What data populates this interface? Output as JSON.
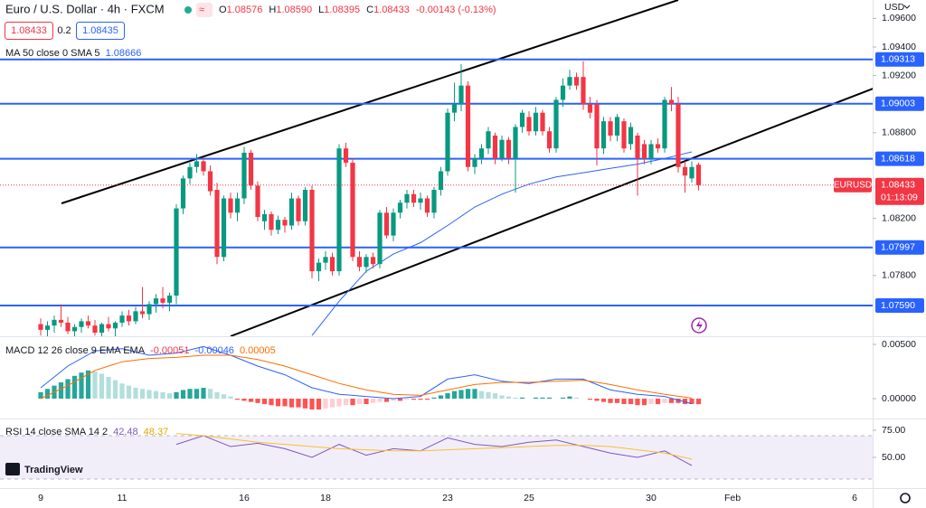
{
  "header": {
    "symbol": "Euro / U.S. Dollar · 4h · FXCM",
    "ohlc": [
      {
        "label": "O",
        "value": "1.08576"
      },
      {
        "label": "H",
        "value": "1.08590"
      },
      {
        "label": "L",
        "value": "1.08395"
      },
      {
        "label": "C",
        "value": "1.08433"
      }
    ],
    "change": "-0.00143 (-0.13%)",
    "bid": "1.08433",
    "spread": "0.2",
    "ask": "1.08435",
    "currency": "USD",
    "watermark": "TradingView"
  },
  "chart_data": [
    {
      "type": "candlestick",
      "up_color": "#089981",
      "down_color": "#f23645",
      "ylim": [
        1.07375,
        1.09729
      ],
      "yticks": [
        {
          "value": 1.096,
          "label": "1.09600"
        },
        {
          "value": 1.094,
          "label": "1.09400"
        },
        {
          "value": 1.092,
          "label": "1.09200"
        },
        {
          "value": 1.088,
          "label": "1.08800"
        },
        {
          "value": 1.082,
          "label": "1.08200"
        },
        {
          "value": 1.078,
          "label": "1.07800"
        }
      ],
      "x_labels": [
        "9",
        "11",
        "16",
        "18",
        "23",
        "25",
        "30",
        "Feb",
        "6"
      ],
      "candles": [
        [
          1.0746,
          1.075,
          1.0738,
          1.0742
        ],
        [
          1.0742,
          1.0748,
          1.0736,
          1.0745
        ],
        [
          1.0745,
          1.0752,
          1.074,
          1.0749
        ],
        [
          1.0749,
          1.076,
          1.0744,
          1.0747
        ],
        [
          1.0747,
          1.0751,
          1.0739,
          1.0741
        ],
        [
          1.0741,
          1.0746,
          1.0735,
          1.0744
        ],
        [
          1.0744,
          1.075,
          1.074,
          1.0748
        ],
        [
          1.0748,
          1.0752,
          1.0743,
          1.0745
        ],
        [
          1.0745,
          1.0749,
          1.0738,
          1.074
        ],
        [
          1.074,
          1.0747,
          1.0736,
          1.0746
        ],
        [
          1.0746,
          1.0751,
          1.0741,
          1.0743
        ],
        [
          1.0743,
          1.0748,
          1.0737,
          1.0747
        ],
        [
          1.0747,
          1.0755,
          1.0744,
          1.0752
        ],
        [
          1.0752,
          1.0756,
          1.0745,
          1.0748
        ],
        [
          1.0748,
          1.0758,
          1.0746,
          1.0755
        ],
        [
          1.0755,
          1.0772,
          1.075,
          1.0753
        ],
        [
          1.0753,
          1.0762,
          1.0749,
          1.076
        ],
        [
          1.076,
          1.0767,
          1.0754,
          1.0764
        ],
        [
          1.0764,
          1.0772,
          1.0757,
          1.0761
        ],
        [
          1.0761,
          1.0768,
          1.0755,
          1.0766
        ],
        [
          1.0766,
          1.083,
          1.076,
          1.0827
        ],
        [
          1.0827,
          1.085,
          1.0823,
          1.0848
        ],
        [
          1.0848,
          1.0859,
          1.0844,
          1.0856
        ],
        [
          1.0856,
          1.0865,
          1.0852,
          1.086
        ],
        [
          1.086,
          1.0863,
          1.085,
          1.0853
        ],
        [
          1.0853,
          1.0857,
          1.0836,
          1.0839
        ],
        [
          1.084,
          1.0845,
          1.0788,
          1.0793
        ],
        [
          1.0793,
          1.0836,
          1.079,
          1.0834
        ],
        [
          1.0834,
          1.0838,
          1.082,
          1.0824
        ],
        [
          1.0824,
          1.0838,
          1.0818,
          1.0834
        ],
        [
          1.0834,
          1.087,
          1.083,
          1.0866
        ],
        [
          1.0866,
          1.0868,
          1.084,
          1.0843
        ],
        [
          1.0843,
          1.0846,
          1.0818,
          1.0821
        ],
        [
          1.0818,
          1.0826,
          1.0812,
          1.0823
        ],
        [
          1.0823,
          1.0825,
          1.0808,
          1.0812
        ],
        [
          1.0812,
          1.0822,
          1.0809,
          1.0819
        ],
        [
          1.0819,
          1.0821,
          1.081,
          1.0815
        ],
        [
          1.0815,
          1.0838,
          1.0812,
          1.0834
        ],
        [
          1.0834,
          1.0836,
          1.0815,
          1.0818
        ],
        [
          1.0818,
          1.0842,
          1.0815,
          1.084
        ],
        [
          1.084,
          1.0843,
          1.0778,
          1.0783
        ],
        [
          1.0783,
          1.0792,
          1.0776,
          1.0789
        ],
        [
          1.0789,
          1.0797,
          1.0784,
          1.0793
        ],
        [
          1.0793,
          1.0796,
          1.078,
          1.0783
        ],
        [
          1.0783,
          1.0872,
          1.078,
          1.0869
        ],
        [
          1.0869,
          1.0873,
          1.0856,
          1.0859
        ],
        [
          1.0859,
          1.0862,
          1.079,
          1.0793
        ],
        [
          1.0793,
          1.0797,
          1.0783,
          1.0786
        ],
        [
          1.0786,
          1.0795,
          1.0782,
          1.0793
        ],
        [
          1.0793,
          1.0796,
          1.0785,
          1.0788
        ],
        [
          1.0788,
          1.0826,
          1.0785,
          1.0824
        ],
        [
          1.0824,
          1.0828,
          1.0806,
          1.0808
        ],
        [
          1.0808,
          1.0827,
          1.0804,
          1.0824
        ],
        [
          1.0824,
          1.0833,
          1.082,
          1.0831
        ],
        [
          1.0831,
          1.084,
          1.0827,
          1.0837
        ],
        [
          1.0837,
          1.084,
          1.0828,
          1.0831
        ],
        [
          1.0831,
          1.0838,
          1.0826,
          1.0834
        ],
        [
          1.0834,
          1.0836,
          1.0821,
          1.0824
        ],
        [
          1.0824,
          1.0842,
          1.082,
          1.084
        ],
        [
          1.084,
          1.0856,
          1.0836,
          1.0853
        ],
        [
          1.0853,
          1.0897,
          1.085,
          1.0894
        ],
        [
          1.0894,
          1.0915,
          1.0888,
          1.09
        ],
        [
          1.09,
          1.0928,
          1.0895,
          1.0913
        ],
        [
          1.0913,
          1.0916,
          1.0853,
          1.0856
        ],
        [
          1.0856,
          1.0865,
          1.0851,
          1.0862
        ],
        [
          1.0862,
          1.0872,
          1.0858,
          1.0869
        ],
        [
          1.0869,
          1.0884,
          1.0865,
          1.0881
        ],
        [
          1.0878,
          1.088,
          1.0858,
          1.0862
        ],
        [
          1.0862,
          1.0878,
          1.086,
          1.0875
        ],
        [
          1.0875,
          1.0877,
          1.0858,
          1.0862
        ],
        [
          1.0862,
          1.0886,
          1.0838,
          1.0884
        ],
        [
          1.0884,
          1.0896,
          1.088,
          1.0894
        ],
        [
          1.0891,
          1.0895,
          1.0878,
          1.0881
        ],
        [
          1.0881,
          1.0898,
          1.0878,
          1.0894
        ],
        [
          1.0894,
          1.0896,
          1.0878,
          1.0881
        ],
        [
          1.0881,
          1.0884,
          1.0866,
          1.0869
        ],
        [
          1.0869,
          1.0905,
          1.0866,
          1.0903
        ],
        [
          1.0903,
          1.0918,
          1.0898,
          1.0913
        ],
        [
          1.0913,
          1.0924,
          1.091,
          1.0919
        ],
        [
          1.0919,
          1.0922,
          1.091,
          1.0913
        ],
        [
          1.0919,
          1.093,
          1.0896,
          1.09
        ],
        [
          1.09,
          1.0905,
          1.089,
          1.0894
        ],
        [
          1.09,
          1.0903,
          1.0857,
          1.0869
        ],
        [
          1.0869,
          1.0891,
          1.0865,
          1.0888
        ],
        [
          1.0888,
          1.0891,
          1.0874,
          1.0878
        ],
        [
          1.0878,
          1.0893,
          1.0874,
          1.0891
        ],
        [
          1.0888,
          1.089,
          1.0866,
          1.0869
        ],
        [
          1.0872,
          1.0887,
          1.0868,
          1.0884
        ],
        [
          1.0878,
          1.088,
          1.0836,
          1.0862
        ],
        [
          1.0872,
          1.0875,
          1.0858,
          1.0862
        ],
        [
          1.0862,
          1.0875,
          1.0858,
          1.0872
        ],
        [
          1.0872,
          1.0876,
          1.0866,
          1.0869
        ],
        [
          1.0869,
          1.0905,
          1.0866,
          1.0903
        ],
        [
          1.0903,
          1.0912,
          1.0895,
          1.09
        ],
        [
          1.09,
          1.0905,
          1.0852,
          1.0856
        ],
        [
          1.0856,
          1.086,
          1.0838,
          1.085
        ],
        [
          1.0848,
          1.086,
          1.0845,
          1.0856
        ],
        [
          1.08576,
          1.0859,
          1.08395,
          1.08433
        ]
      ],
      "levels": [
        {
          "value": 1.09313,
          "label": "1.09313"
        },
        {
          "value": 1.09003,
          "label": "1.09003"
        },
        {
          "value": 1.08618,
          "label": "1.08618"
        },
        {
          "value": 1.07997,
          "label": "1.07997"
        },
        {
          "value": 1.0759,
          "label": "1.07590"
        }
      ],
      "level_color": "#2962ff",
      "last_price": {
        "symbol": "EURUSD",
        "value": 1.08433,
        "label": "1.08433",
        "countdown": "01:13:09"
      },
      "ma": {
        "name": "MA 50 close 0 SMA 5",
        "value_label": "1.08666",
        "color": "#2962ff",
        "values": [
          null,
          null,
          null,
          null,
          null,
          null,
          null,
          null,
          null,
          null,
          1.0738,
          1.0762,
          1.0783,
          1.0795,
          1.0803,
          1.0815,
          1.0828,
          1.0837,
          1.0844,
          1.0849,
          1.0852,
          1.0855,
          1.0858,
          1.0862,
          1.08666
        ]
      }
    },
    {
      "type": "macd",
      "name": "MACD 12 26 close 9 EMA EMA",
      "ylim": [
        -0.00183,
        0.00575
      ],
      "yticks": [
        {
          "value": 0.005,
          "label": "0.00500"
        },
        {
          "value": 0,
          "label": "0.00000"
        }
      ],
      "histogram": {
        "value_label": "-0.00051",
        "colors": [
          "#26a69a",
          "#b2dfdb",
          "#ff5252",
          "#ffcdd2"
        ],
        "values": [
          0.0006,
          0.0009,
          0.0012,
          0.0015,
          0.0018,
          0.0021,
          0.0024,
          0.0026,
          0.0025,
          0.0023,
          0.002,
          0.0017,
          0.0014,
          0.0012,
          0.001,
          0.0009,
          0.0008,
          0.0007,
          0.0006,
          0.0005,
          0.0006,
          0.0008,
          0.0009,
          0.0009,
          0.001,
          0.0009,
          0.0006,
          0.0004,
          0.0002,
          -0.0001,
          -0.0002,
          -0.0003,
          -0.0004,
          -0.0005,
          -0.0006,
          -0.0007,
          -0.0007,
          -0.0008,
          -0.0008,
          -0.0009,
          -0.001,
          -0.001,
          -0.0009,
          -0.0008,
          -0.0007,
          -0.0006,
          -0.0006,
          -0.0005,
          -0.0005,
          -0.0004,
          -0.0003,
          -0.0003,
          -0.0002,
          -0.0002,
          -0.0001,
          -0.0001,
          -0.0001,
          -0.0001,
          0.0001,
          0.0003,
          0.0005,
          0.0007,
          0.0008,
          0.0009,
          0.0009,
          0.0007,
          0.0006,
          0.0005,
          0.0003,
          0.0002,
          0.0001,
          0.0001,
          0,
          0.0001,
          0.0001,
          0.0001,
          0,
          0.0001,
          0.0002,
          0.0001,
          0,
          -0.0001,
          -0.0002,
          -0.0003,
          -0.0004,
          -0.0004,
          -0.0005,
          -0.0005,
          -0.0006,
          -0.0006,
          -0.0005,
          -0.0005,
          -0.0004,
          -0.0004,
          -0.0004,
          -0.0005,
          -0.0005,
          -0.00051
        ]
      },
      "series": [
        {
          "color": "#2962ff",
          "value_label": "-0.00046",
          "values": [
            0.001,
            0.003,
            0.0044,
            0.0046,
            0.004,
            0.0042,
            0.0048,
            0.004,
            0.003,
            0.0022,
            0.001,
            0.0004,
            0.0002,
            0.0,
            0.0002,
            0.0018,
            0.0022,
            0.0016,
            0.0014,
            0.0018,
            0.0018,
            0.0008,
            0.0004,
            0.0002,
            -0.00046
          ]
        },
        {
          "color": "#ff6d00",
          "value_label": "0.00005",
          "values": [
            0.0,
            0.0012,
            0.0026,
            0.0034,
            0.0037,
            0.0038,
            0.004,
            0.004,
            0.0036,
            0.003,
            0.0022,
            0.0014,
            0.0008,
            0.0004,
            0.0003,
            0.0008,
            0.0013,
            0.0015,
            0.0015,
            0.0016,
            0.0017,
            0.0013,
            0.0008,
            0.0004,
            5e-05
          ]
        }
      ]
    },
    {
      "type": "rsi",
      "name": "RSI 14 close SMA 14 2",
      "ylim": [
        21.67,
        85.83
      ],
      "band": [
        30,
        70
      ],
      "band_color": "#7e57c2",
      "yticks": [
        {
          "value": 75,
          "label": "75.00"
        },
        {
          "value": 50,
          "label": "50.00"
        }
      ],
      "series": [
        {
          "color": "#7e57c2",
          "value_label": "42.48",
          "values": [
            null,
            null,
            null,
            null,
            null,
            62,
            70,
            60,
            63,
            58,
            50,
            62,
            52,
            58,
            56,
            68,
            62,
            60,
            64,
            66,
            60,
            54,
            50,
            56,
            42.48
          ]
        },
        {
          "color": "#f9c02d",
          "value_label": "48.37",
          "values": [
            null,
            null,
            null,
            null,
            null,
            72,
            70,
            67,
            64,
            62,
            60,
            58,
            57,
            56,
            56,
            57,
            58,
            59,
            60,
            61,
            61,
            60,
            57,
            54,
            48.37
          ]
        }
      ]
    }
  ]
}
